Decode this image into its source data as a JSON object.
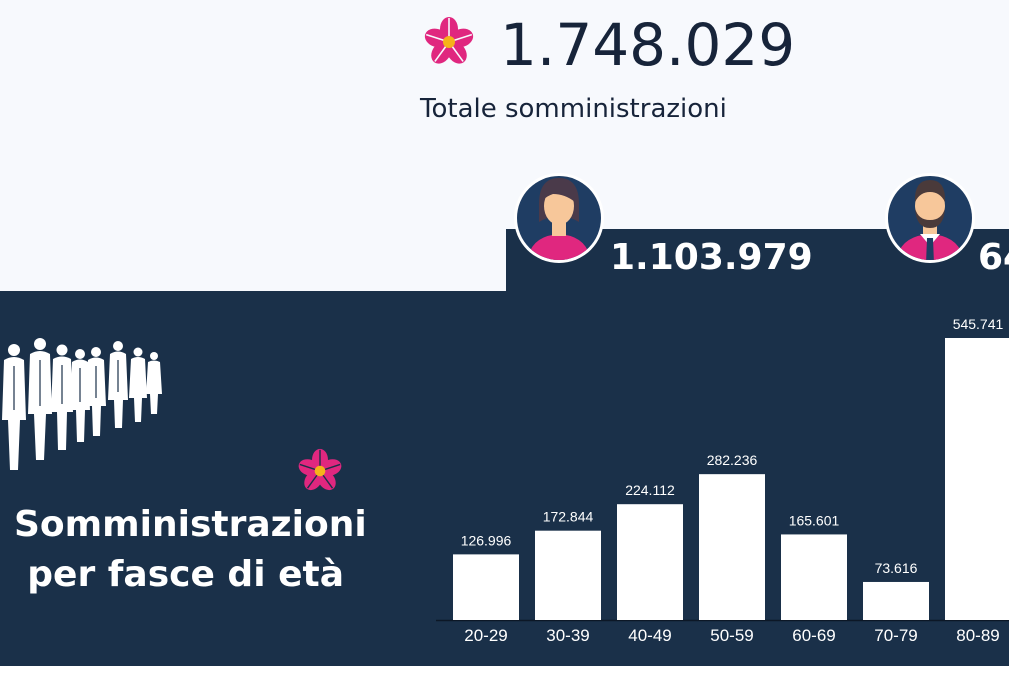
{
  "summary": {
    "total_value": "1.748.029",
    "total_label": "Totale somministrazioni",
    "women_value": "1.103.979",
    "men_value_visible": "64"
  },
  "section": {
    "title_line1": "Somministrazioni",
    "title_line2": "per fasce di età"
  },
  "colors": {
    "navy": "#1a3049",
    "flower_pink": "#e0277f",
    "flower_center": "#f6b21a",
    "bar": "#ffffff",
    "light_bg": "#f7f9fd"
  },
  "icons": [
    "primula-flower-icon",
    "woman-avatar-icon",
    "man-avatar-icon",
    "crowd-silhouette-icon"
  ],
  "chart_data": {
    "type": "bar",
    "categories": [
      "20-29",
      "30-39",
      "40-49",
      "50-59",
      "60-69",
      "70-79",
      "80-89"
    ],
    "values": [
      126996,
      172844,
      224112,
      282236,
      165601,
      73616,
      545741
    ],
    "value_labels": [
      "126.996",
      "172.844",
      "224.112",
      "282.236",
      "165.601",
      "73.616",
      "545.741"
    ],
    "title": "",
    "xlabel": "",
    "ylabel": "",
    "ylim": [
      0,
      545741
    ],
    "grid": false,
    "legend": "none"
  }
}
